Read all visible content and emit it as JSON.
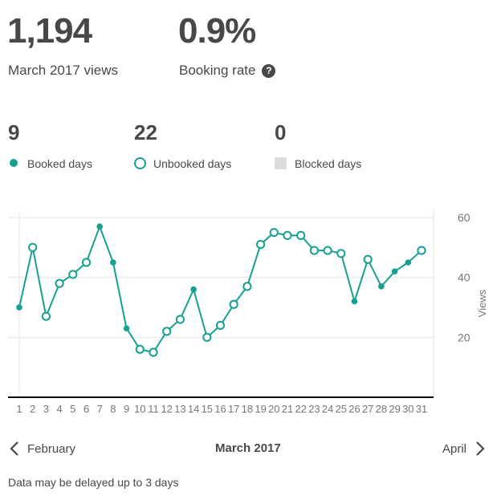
{
  "summary": {
    "views_value": "1,194",
    "views_label": "March 2017 views",
    "booking_rate_value": "0.9%",
    "booking_rate_label": "Booking rate",
    "help_icon_glyph": "?"
  },
  "day_counts": {
    "booked": {
      "value": "9",
      "label": "Booked days"
    },
    "unbooked": {
      "value": "22",
      "label": "Unbooked days"
    },
    "blocked": {
      "value": "0",
      "label": "Blocked days"
    }
  },
  "navigation": {
    "prev_label": "February",
    "current_label": "March 2017",
    "next_label": "April"
  },
  "footnote": "Data may be delayed up to 3 days",
  "colors": {
    "accent": "#16a091",
    "grid": "#e4e4e4",
    "text": "#484848",
    "blocked": "#dcdcdc"
  },
  "icons": {
    "prev": "chevron-left-icon",
    "next": "chevron-right-icon",
    "help": "question-circle-icon"
  },
  "chart_data": {
    "type": "line",
    "title": "",
    "xlabel": "",
    "ylabel": "Views",
    "x": [
      1,
      2,
      3,
      4,
      5,
      6,
      7,
      8,
      9,
      10,
      11,
      12,
      13,
      14,
      15,
      16,
      17,
      18,
      19,
      20,
      21,
      22,
      23,
      24,
      25,
      26,
      27,
      28,
      29,
      30,
      31
    ],
    "series": [
      {
        "values": [
          30,
          50,
          27,
          38,
          41,
          45,
          57,
          45,
          23,
          16,
          15,
          22,
          26,
          36,
          20,
          24,
          31,
          37,
          51,
          55,
          54,
          54,
          49,
          49,
          48,
          32,
          46,
          37,
          42,
          45,
          49
        ],
        "booked": [
          true,
          false,
          false,
          false,
          false,
          false,
          true,
          true,
          true,
          false,
          false,
          false,
          false,
          true,
          false,
          false,
          false,
          false,
          false,
          false,
          false,
          false,
          false,
          false,
          false,
          true,
          false,
          true,
          true,
          true,
          false
        ]
      }
    ],
    "yticks": [
      20,
      40,
      60
    ],
    "ylim": [
      0,
      60
    ],
    "grid": true,
    "y_axis_side": "right"
  }
}
